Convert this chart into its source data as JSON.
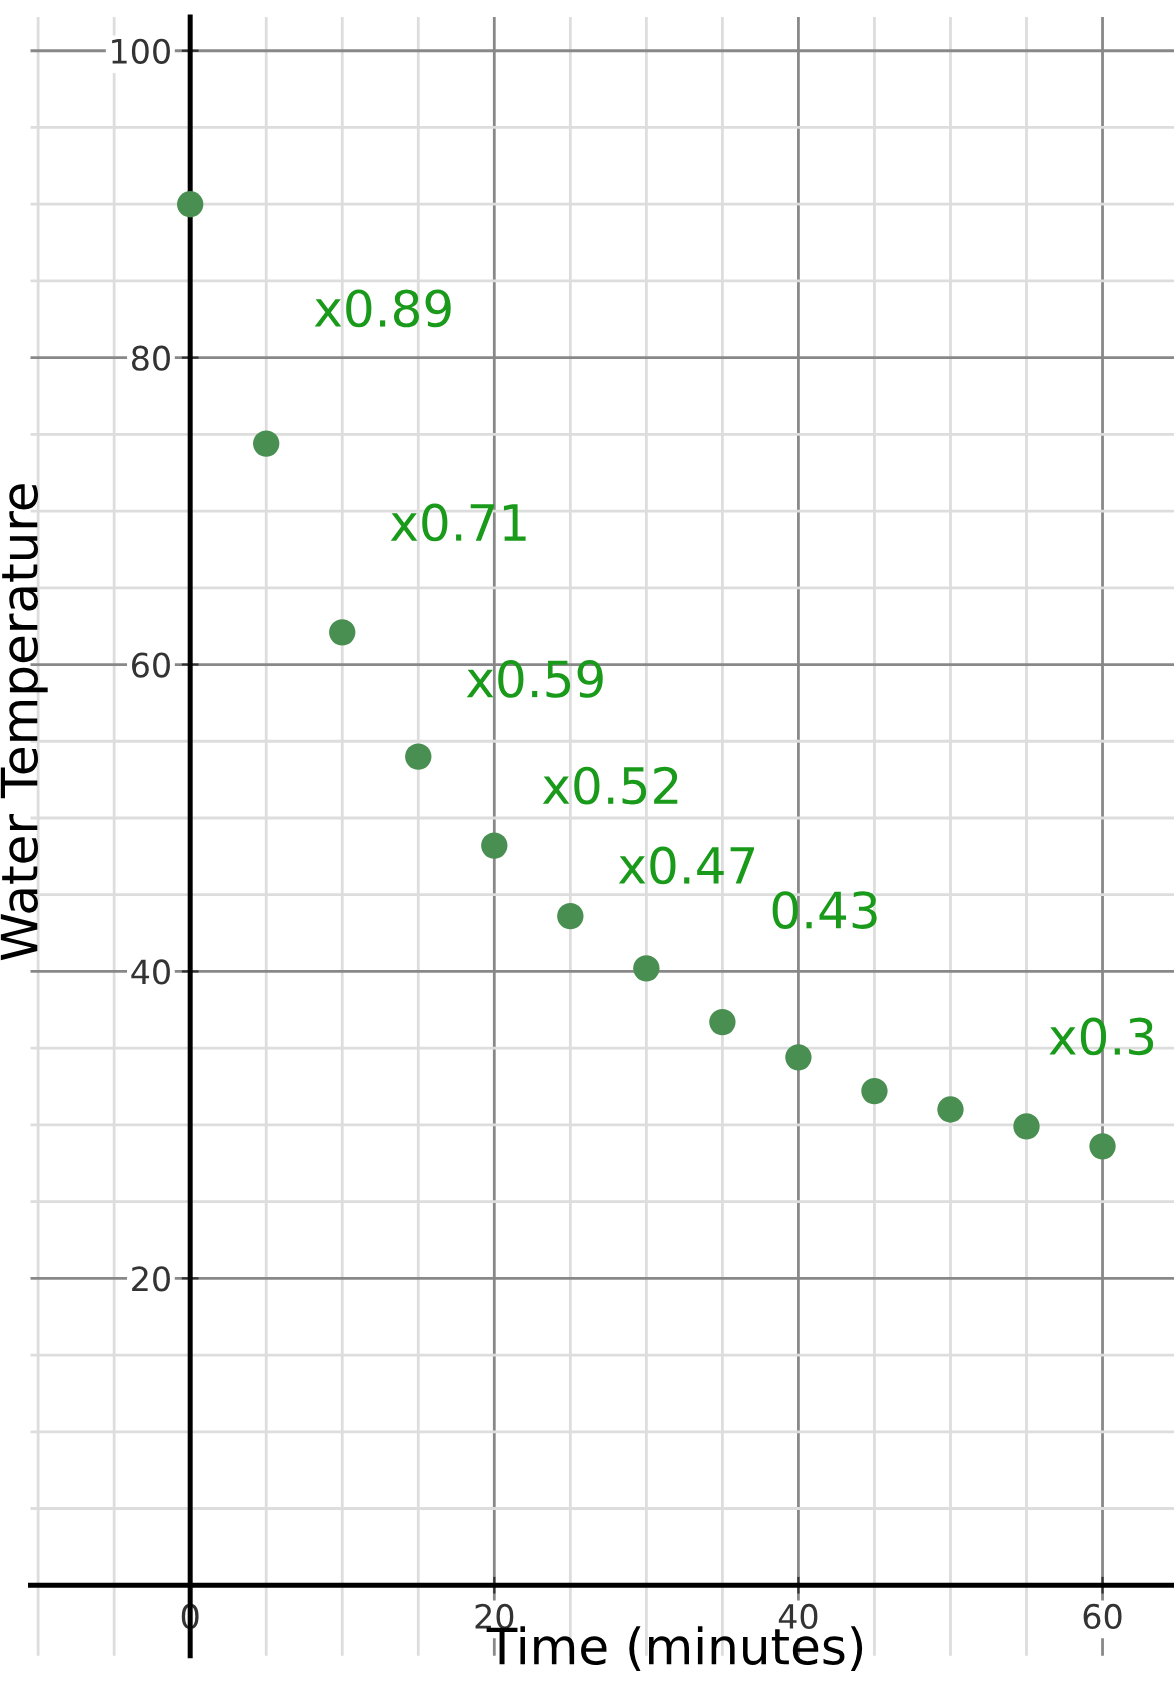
{
  "chart_data": {
    "type": "scatter",
    "xlabel": "Time (minutes)",
    "ylabel": "Water Temperature",
    "x": [
      0,
      5,
      10,
      15,
      20,
      25,
      30,
      35,
      40,
      45,
      50,
      55,
      60
    ],
    "series": [
      {
        "color": "#4a8f52",
        "values": [
          90,
          74.4,
          62.1,
          54,
          48.2,
          43.6,
          40.2,
          36.7,
          34.4,
          32.2,
          31,
          29.9,
          28.6
        ]
      }
    ],
    "marker": "circle",
    "xlim": [
      -10.5,
      64.7
    ],
    "ylim": [
      -4.6,
      102.2
    ],
    "xticks": [
      0,
      20,
      40,
      60
    ],
    "yticks": [
      20,
      40,
      60,
      80,
      100
    ],
    "grid": true,
    "legend": false,
    "annotations": [
      "x0.89",
      "x0.71",
      "x0.59",
      "x0.52",
      "x0.47",
      "0.43",
      "x0.3"
    ]
  }
}
